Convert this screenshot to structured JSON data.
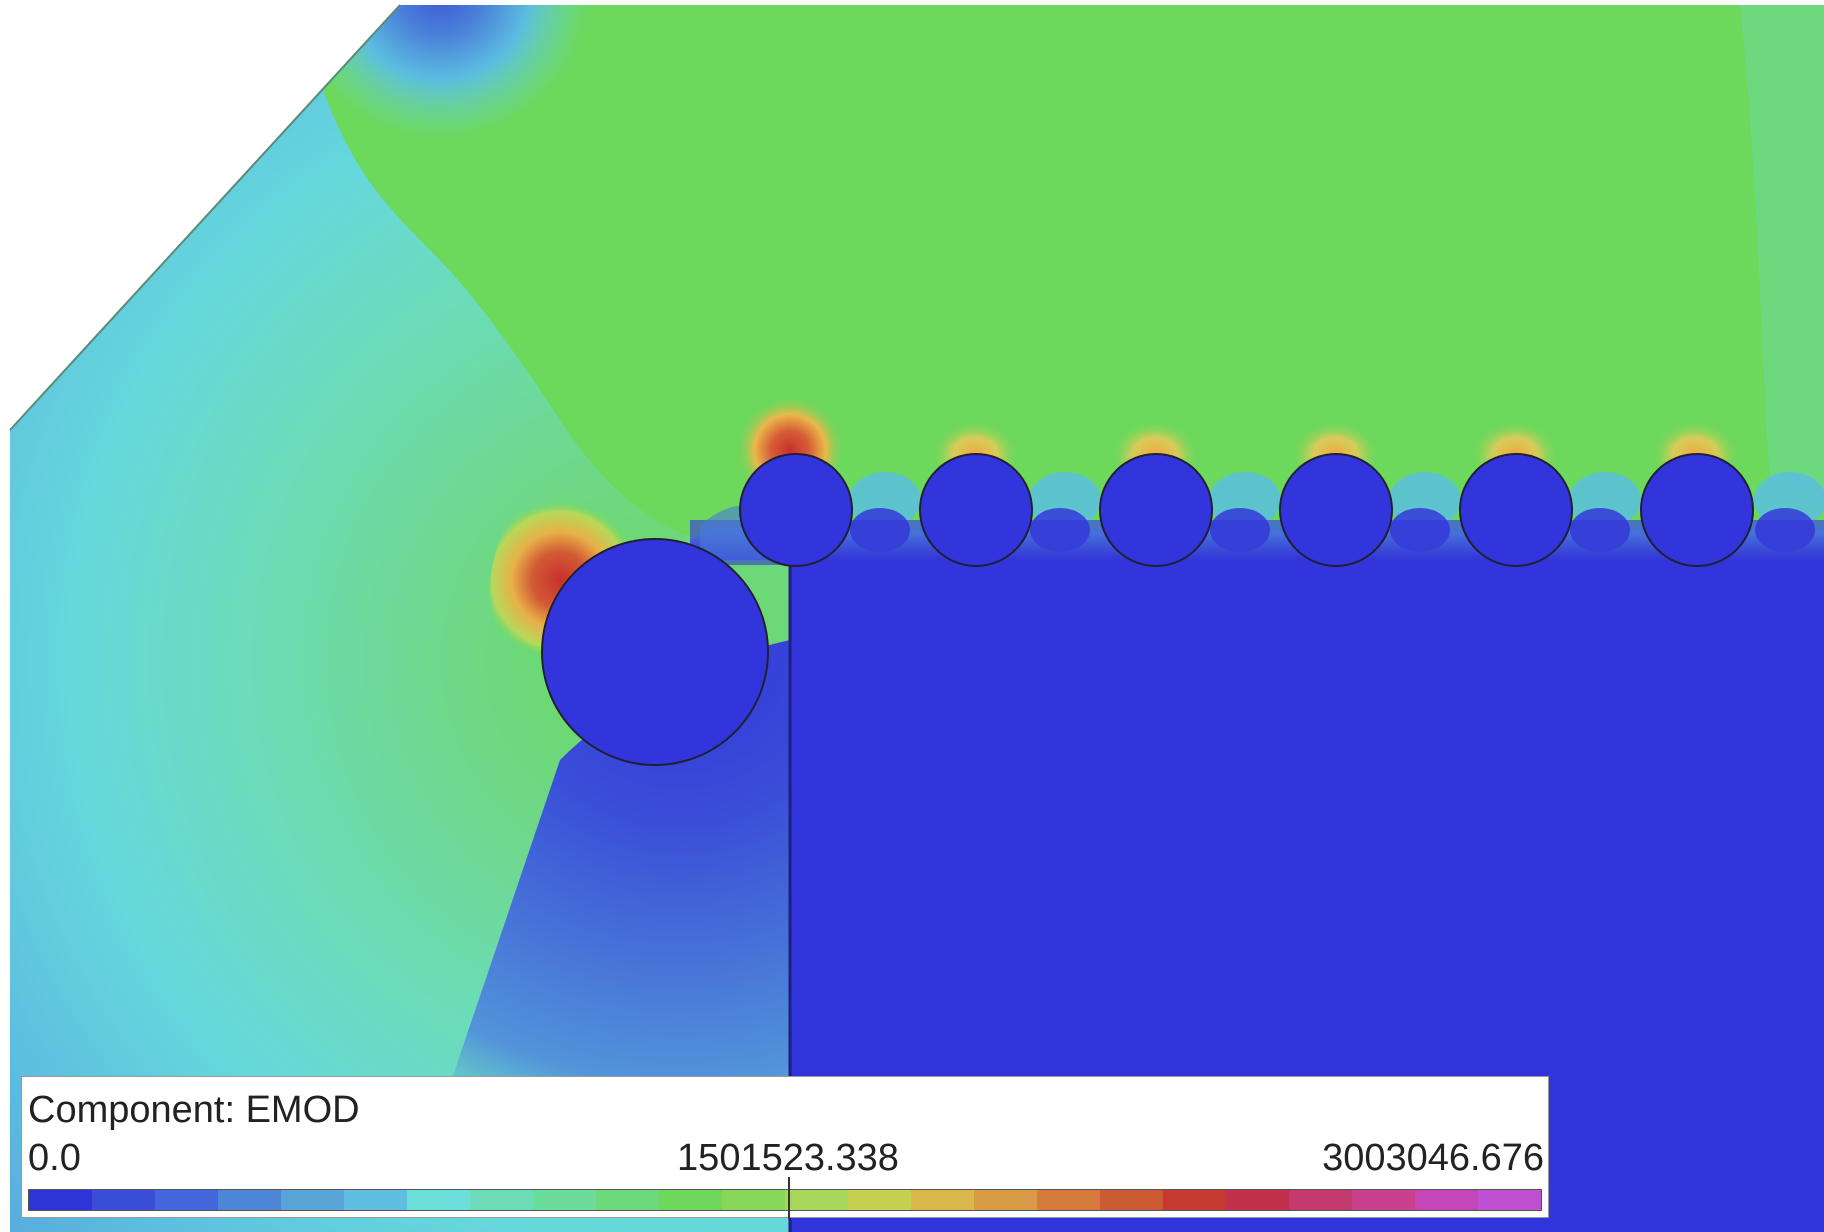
{
  "legend": {
    "title": "Component: EMOD",
    "tick_min": "0.0",
    "tick_mid": "1501523.338",
    "tick_max": "3003046.676",
    "colors": [
      "#2f34d6",
      "#3a4ed8",
      "#4366da",
      "#4e86d6",
      "#58a4d6",
      "#60bfe0",
      "#6cdedc",
      "#6edcb8",
      "#6cdc9c",
      "#6ed87c",
      "#6ed85c",
      "#86d65a",
      "#a6d65a",
      "#c6d050",
      "#d8b84a",
      "#d89a44",
      "#d67a3c",
      "#cc5a34",
      "#c43a30",
      "#c0304a",
      "#c43a6c",
      "#c8408e",
      "#c446b8",
      "#c050d2"
    ]
  },
  "field_colors": {
    "low": "#3235dc",
    "base": "#6cd85c",
    "hot": "#d0402c",
    "warm": "#f2a43a"
  },
  "geometry_labels": {
    "inclusions": [
      "large-inclusion",
      "small-inclusion-1",
      "small-inclusion-2",
      "small-inclusion-3",
      "small-inclusion-4",
      "small-inclusion-5",
      "small-inclusion-6"
    ]
  }
}
